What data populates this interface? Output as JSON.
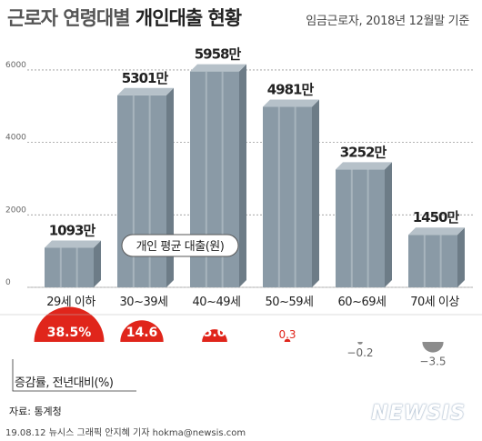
{
  "header": {
    "title_light": "근로자 연령대별",
    "title_bold": "개인대출 현황",
    "subtitle": "임금근로자, 2018년 12월말 기준"
  },
  "chart_data": {
    "type": "bar",
    "categories": [
      "29세 이하",
      "30~39세",
      "40~49세",
      "50~59세",
      "60~69세",
      "70세 이상"
    ],
    "values": [
      1093,
      5301,
      5958,
      4981,
      3252,
      1450
    ],
    "value_labels": [
      "1093만",
      "5301만",
      "5958만",
      "4981만",
      "3252만",
      "1450만"
    ],
    "ylim": [
      0,
      6500
    ],
    "yticks": [
      "0",
      "2000",
      "4000",
      "6000"
    ],
    "ytick_values": [
      0,
      2000,
      4000,
      6000
    ],
    "series_label": "개인 평균 대출(원)",
    "growth": {
      "label": "증감률, 전년대비(%)",
      "values": [
        38.5,
        14.6,
        5.0,
        0.3,
        -0.2,
        -3.5
      ],
      "value_labels": [
        "38.5%",
        "14.6",
        "5.0",
        "0.3",
        "−0.2",
        "−3.5"
      ]
    },
    "colors": {
      "bar": "#8a9aa6",
      "bar_side": "#6d7c87",
      "bar_top": "#b6c1c9",
      "positive": "#e0251b",
      "negative": "#8c8c8c"
    },
    "grid": true
  },
  "footer": {
    "source": "자료: 통계청",
    "credit": "19.08.12 뉴시스 그래픽 안지혜 기자 hokma@newsis.com",
    "logo": "NEWSIS"
  }
}
